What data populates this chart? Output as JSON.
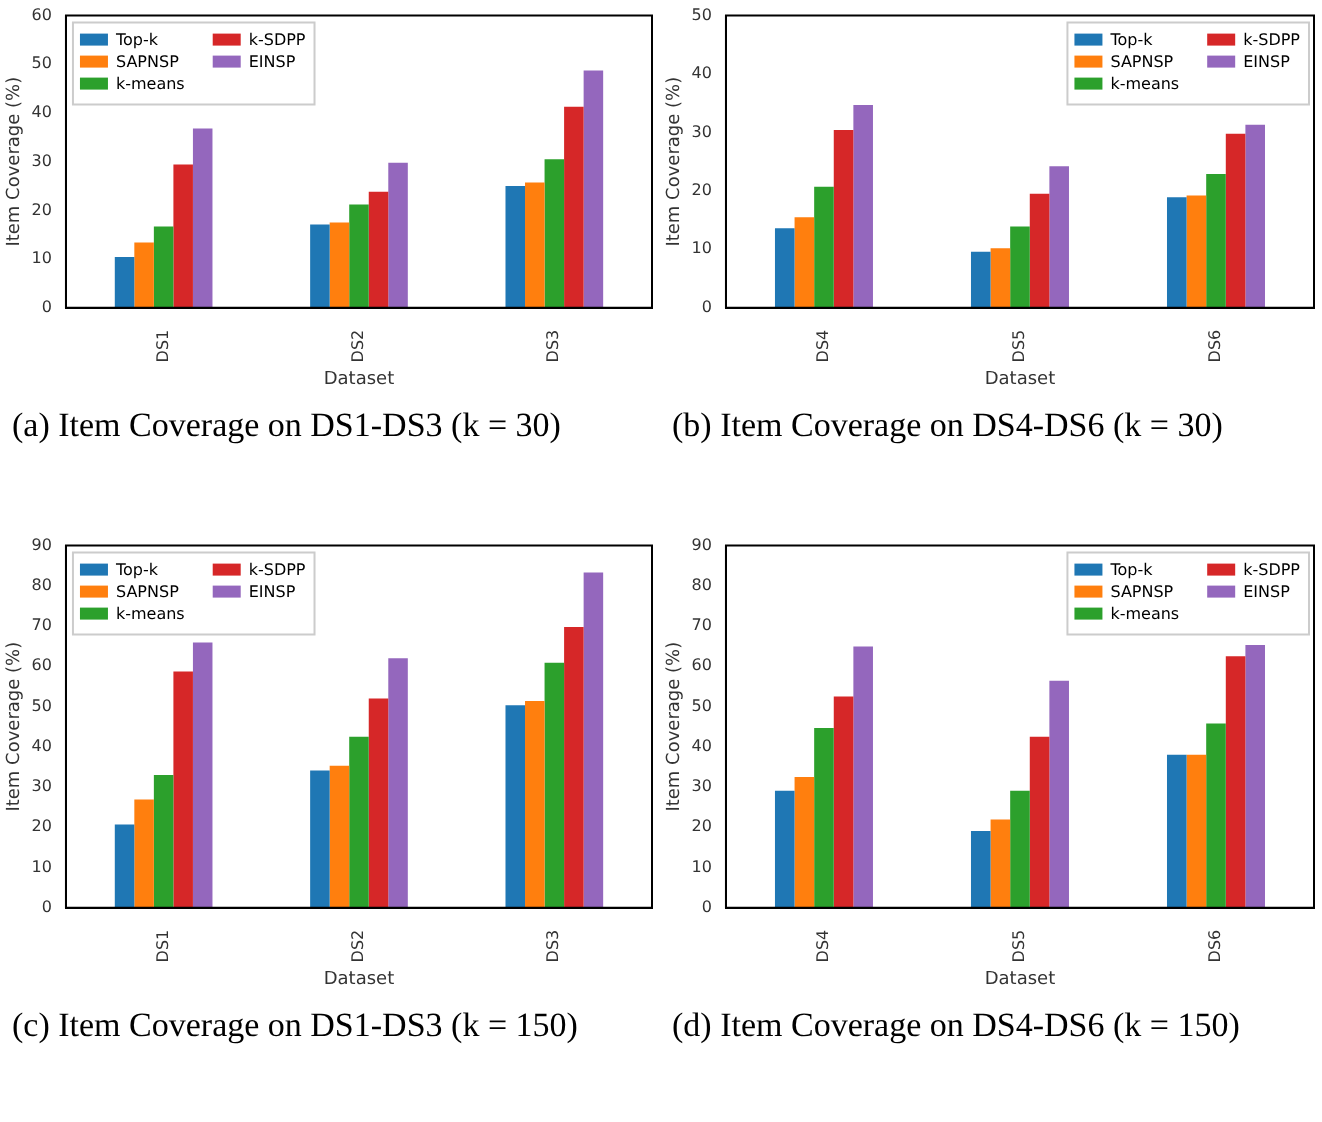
{
  "chart_data": [
    {
      "type": "bar",
      "title": "(a) Item Coverage on DS1-DS3 (k = 30)",
      "xlabel": "Dataset",
      "ylabel": "Item Coverage (%)",
      "categories": [
        "DS1",
        "DS2",
        "DS3"
      ],
      "ylim": [
        0,
        60
      ],
      "yticks": [
        0,
        10,
        20,
        30,
        40,
        50,
        60
      ],
      "grid": false,
      "legend": "top left",
      "series": [
        {
          "name": "Top-k",
          "color": "#1f77b4",
          "values": [
            10.4,
            17.1,
            25.0
          ]
        },
        {
          "name": "SAPNSP",
          "color": "#ff7f0e",
          "values": [
            13.4,
            17.5,
            25.7
          ]
        },
        {
          "name": "k-means",
          "color": "#2ca02c",
          "values": [
            16.7,
            21.2,
            30.5
          ]
        },
        {
          "name": "k-SDPP",
          "color": "#d62728",
          "values": [
            29.4,
            23.8,
            41.3
          ]
        },
        {
          "name": "EINSP",
          "color": "#9467bd",
          "values": [
            36.8,
            29.8,
            48.7
          ]
        }
      ]
    },
    {
      "type": "bar",
      "title": "(b) Item Coverage on DS4-DS6 (k = 30)",
      "xlabel": "Dataset",
      "ylabel": "Item Coverage (%)",
      "categories": [
        "DS4",
        "DS5",
        "DS6"
      ],
      "ylim": [
        0,
        50
      ],
      "yticks": [
        0,
        10,
        20,
        30,
        40,
        50
      ],
      "grid": false,
      "legend": "top right",
      "series": [
        {
          "name": "Top-k",
          "color": "#1f77b4",
          "values": [
            13.6,
            9.6,
            18.9
          ]
        },
        {
          "name": "SAPNSP",
          "color": "#ff7f0e",
          "values": [
            15.5,
            10.2,
            19.2
          ]
        },
        {
          "name": "k-means",
          "color": "#2ca02c",
          "values": [
            20.7,
            13.9,
            22.9
          ]
        },
        {
          "name": "k-SDPP",
          "color": "#d62728",
          "values": [
            30.4,
            19.5,
            29.8
          ]
        },
        {
          "name": "EINSP",
          "color": "#9467bd",
          "values": [
            34.7,
            24.2,
            31.3
          ]
        }
      ]
    },
    {
      "type": "bar",
      "title": "(c) Item Coverage on DS1-DS3 (k = 150)",
      "xlabel": "Dataset",
      "ylabel": "Item Coverage (%)",
      "categories": [
        "DS1",
        "DS2",
        "DS3"
      ],
      "ylim": [
        0,
        90
      ],
      "yticks": [
        0,
        10,
        20,
        30,
        40,
        50,
        60,
        70,
        80,
        90
      ],
      "grid": false,
      "legend": "top left",
      "series": [
        {
          "name": "Top-k",
          "color": "#1f77b4",
          "values": [
            20.7,
            34.1,
            50.3
          ]
        },
        {
          "name": "SAPNSP",
          "color": "#ff7f0e",
          "values": [
            26.9,
            35.3,
            51.4
          ]
        },
        {
          "name": "k-means",
          "color": "#2ca02c",
          "values": [
            33.0,
            42.5,
            60.9
          ]
        },
        {
          "name": "k-SDPP",
          "color": "#d62728",
          "values": [
            58.7,
            52.0,
            69.8
          ]
        },
        {
          "name": "EINSP",
          "color": "#9467bd",
          "values": [
            65.9,
            62.0,
            83.3
          ]
        }
      ]
    },
    {
      "type": "bar",
      "title": "(d) Item Coverage on DS4-DS6 (k = 150)",
      "xlabel": "Dataset",
      "ylabel": "Item Coverage (%)",
      "categories": [
        "DS4",
        "DS5",
        "DS6"
      ],
      "ylim": [
        0,
        90
      ],
      "yticks": [
        0,
        10,
        20,
        30,
        40,
        50,
        60,
        70,
        80,
        90
      ],
      "grid": false,
      "legend": "top right",
      "series": [
        {
          "name": "Top-k",
          "color": "#1f77b4",
          "values": [
            29.1,
            19.1,
            38.0
          ]
        },
        {
          "name": "SAPNSP",
          "color": "#ff7f0e",
          "values": [
            32.5,
            21.9,
            38.0
          ]
        },
        {
          "name": "k-means",
          "color": "#2ca02c",
          "values": [
            44.7,
            29.1,
            45.8
          ]
        },
        {
          "name": "k-SDPP",
          "color": "#d62728",
          "values": [
            52.5,
            42.5,
            62.5
          ]
        },
        {
          "name": "EINSP",
          "color": "#9467bd",
          "values": [
            64.9,
            56.4,
            65.3
          ]
        }
      ]
    }
  ]
}
